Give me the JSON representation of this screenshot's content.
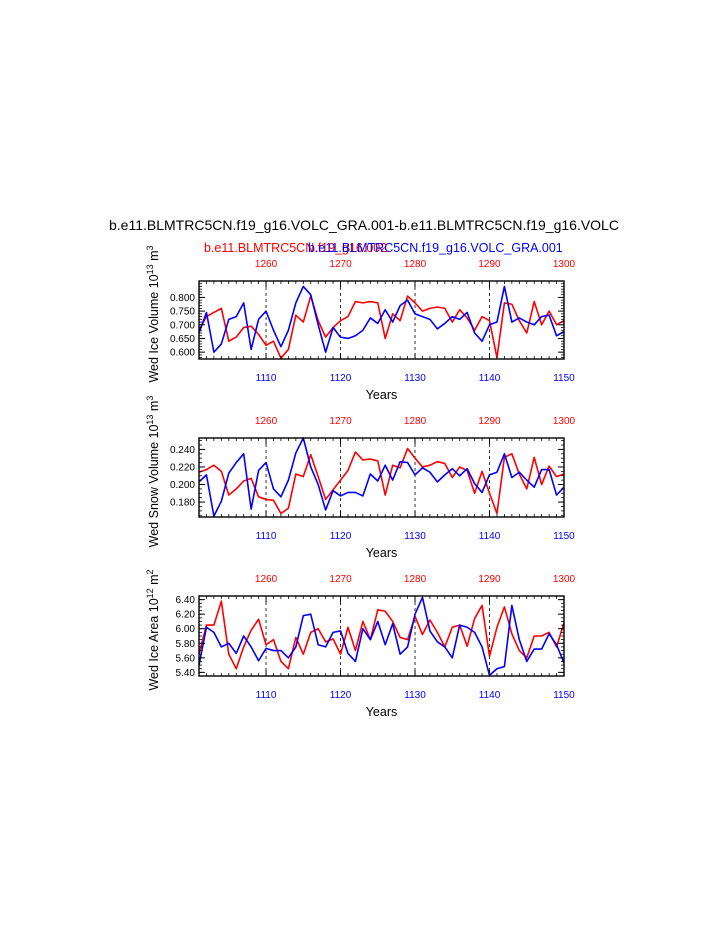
{
  "title": {
    "main": "b.e11.BLMTRC5CN.f19_g16.VOLC_GRA.001-b.e11.BLMTRC5CN.f19_g16.VOLC",
    "series_red": "b.e11.BLMTRC5CN.f19_g16.002",
    "series_blue": "b.e11.BLMTRC5CN.f19_g16.VOLC_GRA.001"
  },
  "colors": {
    "red": "#ff0000",
    "blue": "#0000ff",
    "axis": "#000000"
  },
  "chart_data": [
    {
      "type": "line",
      "ylabel": "Wed Ice Volume 10",
      "ylabel_exp": "13",
      "ylabel_unit": " m",
      "ylabel_unit_exp": "3",
      "xlabel": "Years",
      "xlim_bottom": [
        1101,
        1150
      ],
      "xlim_top": [
        1251,
        1300
      ],
      "ylim": [
        0.575,
        0.86
      ],
      "yticks": [
        0.6,
        0.65,
        0.7,
        0.75,
        0.8
      ],
      "yticklabels": [
        "0.600",
        "0.650",
        "0.700",
        "0.750",
        "0.800"
      ],
      "yminor": 0.01,
      "xticks_bottom": [
        1110,
        1120,
        1130,
        1140,
        1150
      ],
      "xticks_top": [
        1260,
        1270,
        1280,
        1290,
        1300
      ],
      "series": [
        {
          "name": "b.e11.BLMTRC5CN.f19_g16.002",
          "color": "#ff0000",
          "axis": "top",
          "x_start": 1251,
          "values": [
            0.68,
            0.73,
            0.745,
            0.76,
            0.64,
            0.655,
            0.69,
            0.695,
            0.665,
            0.625,
            0.64,
            0.578,
            0.61,
            0.735,
            0.71,
            0.805,
            0.715,
            0.655,
            0.69,
            0.715,
            0.73,
            0.785,
            0.78,
            0.785,
            0.78,
            0.65,
            0.74,
            0.715,
            0.805,
            0.78,
            0.75,
            0.76,
            0.765,
            0.76,
            0.71,
            0.755,
            0.725,
            0.68,
            0.73,
            0.715,
            0.58,
            0.78,
            0.775,
            0.715,
            0.67,
            0.785,
            0.7,
            0.75,
            0.7,
            0.715
          ]
        },
        {
          "name": "b.e11.BLMTRC5CN.f19_g16.VOLC_GRA.001",
          "color": "#0000ff",
          "axis": "bottom",
          "x_start": 1101,
          "values": [
            0.67,
            0.745,
            0.6,
            0.63,
            0.72,
            0.73,
            0.78,
            0.61,
            0.72,
            0.75,
            0.68,
            0.62,
            0.68,
            0.78,
            0.84,
            0.81,
            0.7,
            0.6,
            0.69,
            0.655,
            0.65,
            0.66,
            0.68,
            0.725,
            0.705,
            0.755,
            0.71,
            0.77,
            0.79,
            0.74,
            0.73,
            0.72,
            0.685,
            0.705,
            0.73,
            0.72,
            0.745,
            0.67,
            0.64,
            0.7,
            0.71,
            0.84,
            0.71,
            0.725,
            0.71,
            0.7,
            0.73,
            0.735,
            0.66,
            0.675
          ]
        }
      ]
    },
    {
      "type": "line",
      "ylabel": "Wed Snow Volume 10",
      "ylabel_exp": "13",
      "ylabel_unit": " m",
      "ylabel_unit_exp": "3",
      "xlabel": "Years",
      "xlim_bottom": [
        1101,
        1150
      ],
      "xlim_top": [
        1251,
        1300
      ],
      "ylim": [
        0.163,
        0.253
      ],
      "yticks": [
        0.18,
        0.2,
        0.22,
        0.24
      ],
      "yticklabels": [
        "0.180",
        "0.200",
        "0.220",
        "0.240"
      ],
      "yminor": 0.005,
      "xticks_bottom": [
        1110,
        1120,
        1130,
        1140,
        1150
      ],
      "xticks_top": [
        1260,
        1270,
        1280,
        1290,
        1300
      ],
      "series": [
        {
          "name": "b.e11.BLMTRC5CN.f19_g16.002",
          "color": "#ff0000",
          "axis": "top",
          "x_start": 1251,
          "values": [
            0.214,
            0.217,
            0.222,
            0.215,
            0.188,
            0.195,
            0.204,
            0.207,
            0.186,
            0.183,
            0.182,
            0.167,
            0.173,
            0.212,
            0.209,
            0.234,
            0.209,
            0.183,
            0.194,
            0.205,
            0.216,
            0.237,
            0.228,
            0.229,
            0.227,
            0.188,
            0.222,
            0.219,
            0.241,
            0.23,
            0.22,
            0.222,
            0.226,
            0.224,
            0.208,
            0.22,
            0.216,
            0.19,
            0.215,
            0.19,
            0.167,
            0.231,
            0.235,
            0.212,
            0.195,
            0.231,
            0.2,
            0.221,
            0.209,
            0.212
          ]
        },
        {
          "name": "b.e11.BLMTRC5CN.f19_g16.VOLC_GRA.001",
          "color": "#0000ff",
          "axis": "bottom",
          "x_start": 1101,
          "values": [
            0.203,
            0.211,
            0.164,
            0.181,
            0.213,
            0.225,
            0.235,
            0.172,
            0.216,
            0.225,
            0.195,
            0.186,
            0.205,
            0.236,
            0.253,
            0.22,
            0.2,
            0.171,
            0.193,
            0.187,
            0.191,
            0.191,
            0.187,
            0.212,
            0.204,
            0.222,
            0.205,
            0.226,
            0.225,
            0.211,
            0.219,
            0.214,
            0.203,
            0.211,
            0.218,
            0.21,
            0.218,
            0.201,
            0.191,
            0.211,
            0.214,
            0.235,
            0.208,
            0.214,
            0.205,
            0.197,
            0.217,
            0.217,
            0.188,
            0.197
          ]
        }
      ]
    },
    {
      "type": "line",
      "ylabel": "Wed Ice Area 10",
      "ylabel_exp": "12",
      "ylabel_unit": " m",
      "ylabel_unit_exp": "2",
      "xlabel": "Years",
      "xlim_bottom": [
        1101,
        1150
      ],
      "xlim_top": [
        1251,
        1300
      ],
      "ylim": [
        5.35,
        6.45
      ],
      "yticks": [
        5.4,
        5.6,
        5.8,
        6.0,
        6.2,
        6.4
      ],
      "yticklabels": [
        "5.40",
        "5.60",
        "5.80",
        "6.00",
        "6.20",
        "6.40"
      ],
      "yminor": 0.05,
      "xticks_bottom": [
        1110,
        1120,
        1130,
        1140,
        1150
      ],
      "xticks_top": [
        1260,
        1270,
        1280,
        1290,
        1300
      ],
      "series": [
        {
          "name": "b.e11.BLMTRC5CN.f19_g16.002",
          "color": "#ff0000",
          "axis": "top",
          "x_start": 1251,
          "values": [
            5.65,
            6.05,
            6.05,
            6.38,
            5.65,
            5.45,
            5.75,
            5.98,
            6.13,
            5.78,
            5.85,
            5.55,
            5.45,
            5.88,
            5.65,
            5.95,
            6.0,
            5.82,
            5.86,
            5.65,
            6.02,
            5.7,
            6.1,
            5.85,
            6.26,
            6.24,
            6.1,
            5.88,
            5.85,
            6.17,
            5.92,
            6.12,
            5.95,
            5.75,
            6.02,
            6.05,
            5.76,
            6.14,
            6.32,
            5.62,
            6.02,
            6.3,
            5.93,
            5.7,
            5.6,
            5.9,
            5.9,
            5.95,
            5.75,
            6.08
          ]
        },
        {
          "name": "b.e11.BLMTRC5CN.f19_g16.VOLC_GRA.001",
          "color": "#0000ff",
          "axis": "bottom",
          "x_start": 1101,
          "values": [
            5.5,
            6.02,
            5.95,
            5.75,
            5.8,
            5.66,
            5.9,
            5.75,
            5.56,
            5.73,
            5.7,
            5.7,
            5.6,
            5.75,
            6.18,
            6.2,
            5.78,
            5.75,
            5.95,
            5.97,
            5.66,
            5.55,
            6.0,
            5.85,
            6.1,
            5.78,
            6.07,
            5.65,
            5.75,
            6.2,
            6.43,
            5.97,
            5.82,
            5.75,
            5.6,
            6.05,
            6.02,
            5.95,
            5.75,
            5.36,
            5.45,
            5.48,
            6.32,
            5.85,
            5.55,
            5.72,
            5.72,
            5.93,
            5.78,
            5.53
          ]
        }
      ]
    }
  ]
}
